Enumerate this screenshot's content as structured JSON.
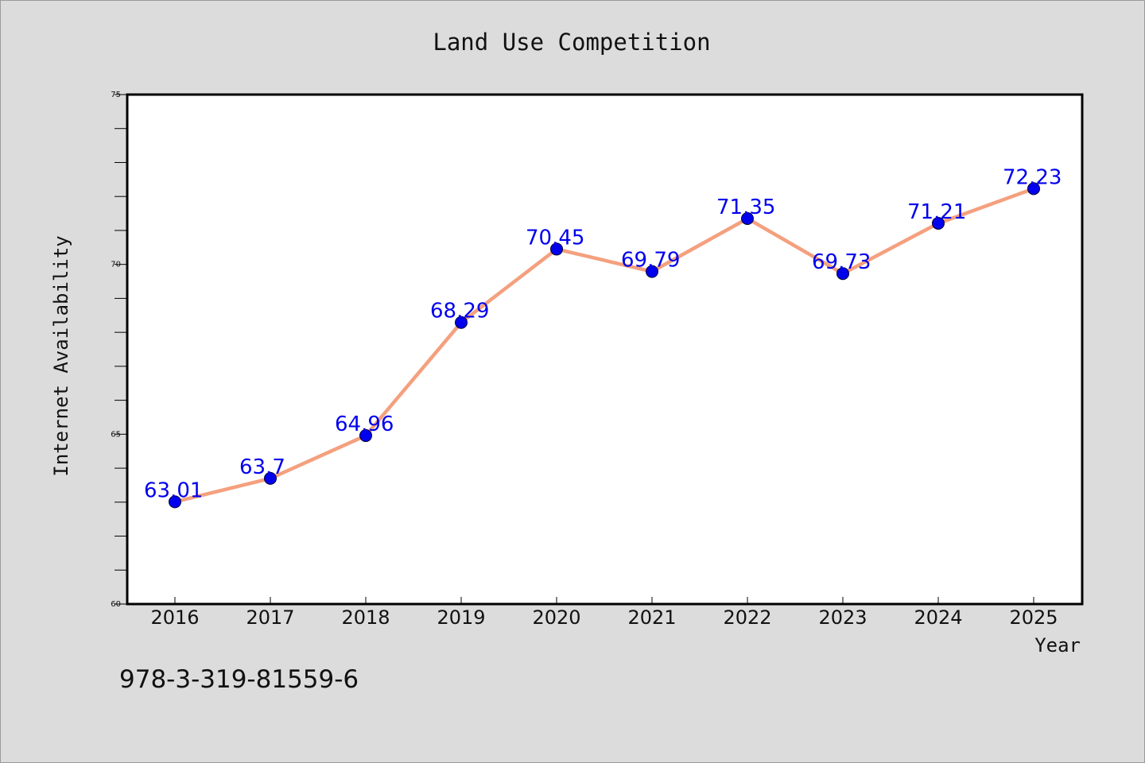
{
  "chart_data": {
    "type": "line",
    "title": "Land Use Competition",
    "xlabel": "Year",
    "ylabel": "Internet Availability",
    "categories": [
      "2016",
      "2017",
      "2018",
      "2019",
      "2020",
      "2021",
      "2022",
      "2023",
      "2024",
      "2025"
    ],
    "values": [
      63.01,
      63.7,
      64.96,
      68.29,
      70.45,
      69.79,
      71.35,
      69.73,
      71.21,
      72.23
    ],
    "data_labels": [
      "63.01",
      "63.7",
      "64.96",
      "68.29",
      "70.45",
      "69.79",
      "71.35",
      "69.73",
      "71.21",
      "72.23"
    ],
    "ylim": [
      60,
      75
    ],
    "yticks": [
      "60",
      "65",
      "70",
      "75"
    ],
    "ytick_values": [
      60,
      65,
      70,
      75
    ],
    "grid": false,
    "legend": "none",
    "line_color": "#f4a07e",
    "marker_color": "#0000ee",
    "label_color": "#0000ee"
  },
  "annotation": "978-3-319-81559-6"
}
